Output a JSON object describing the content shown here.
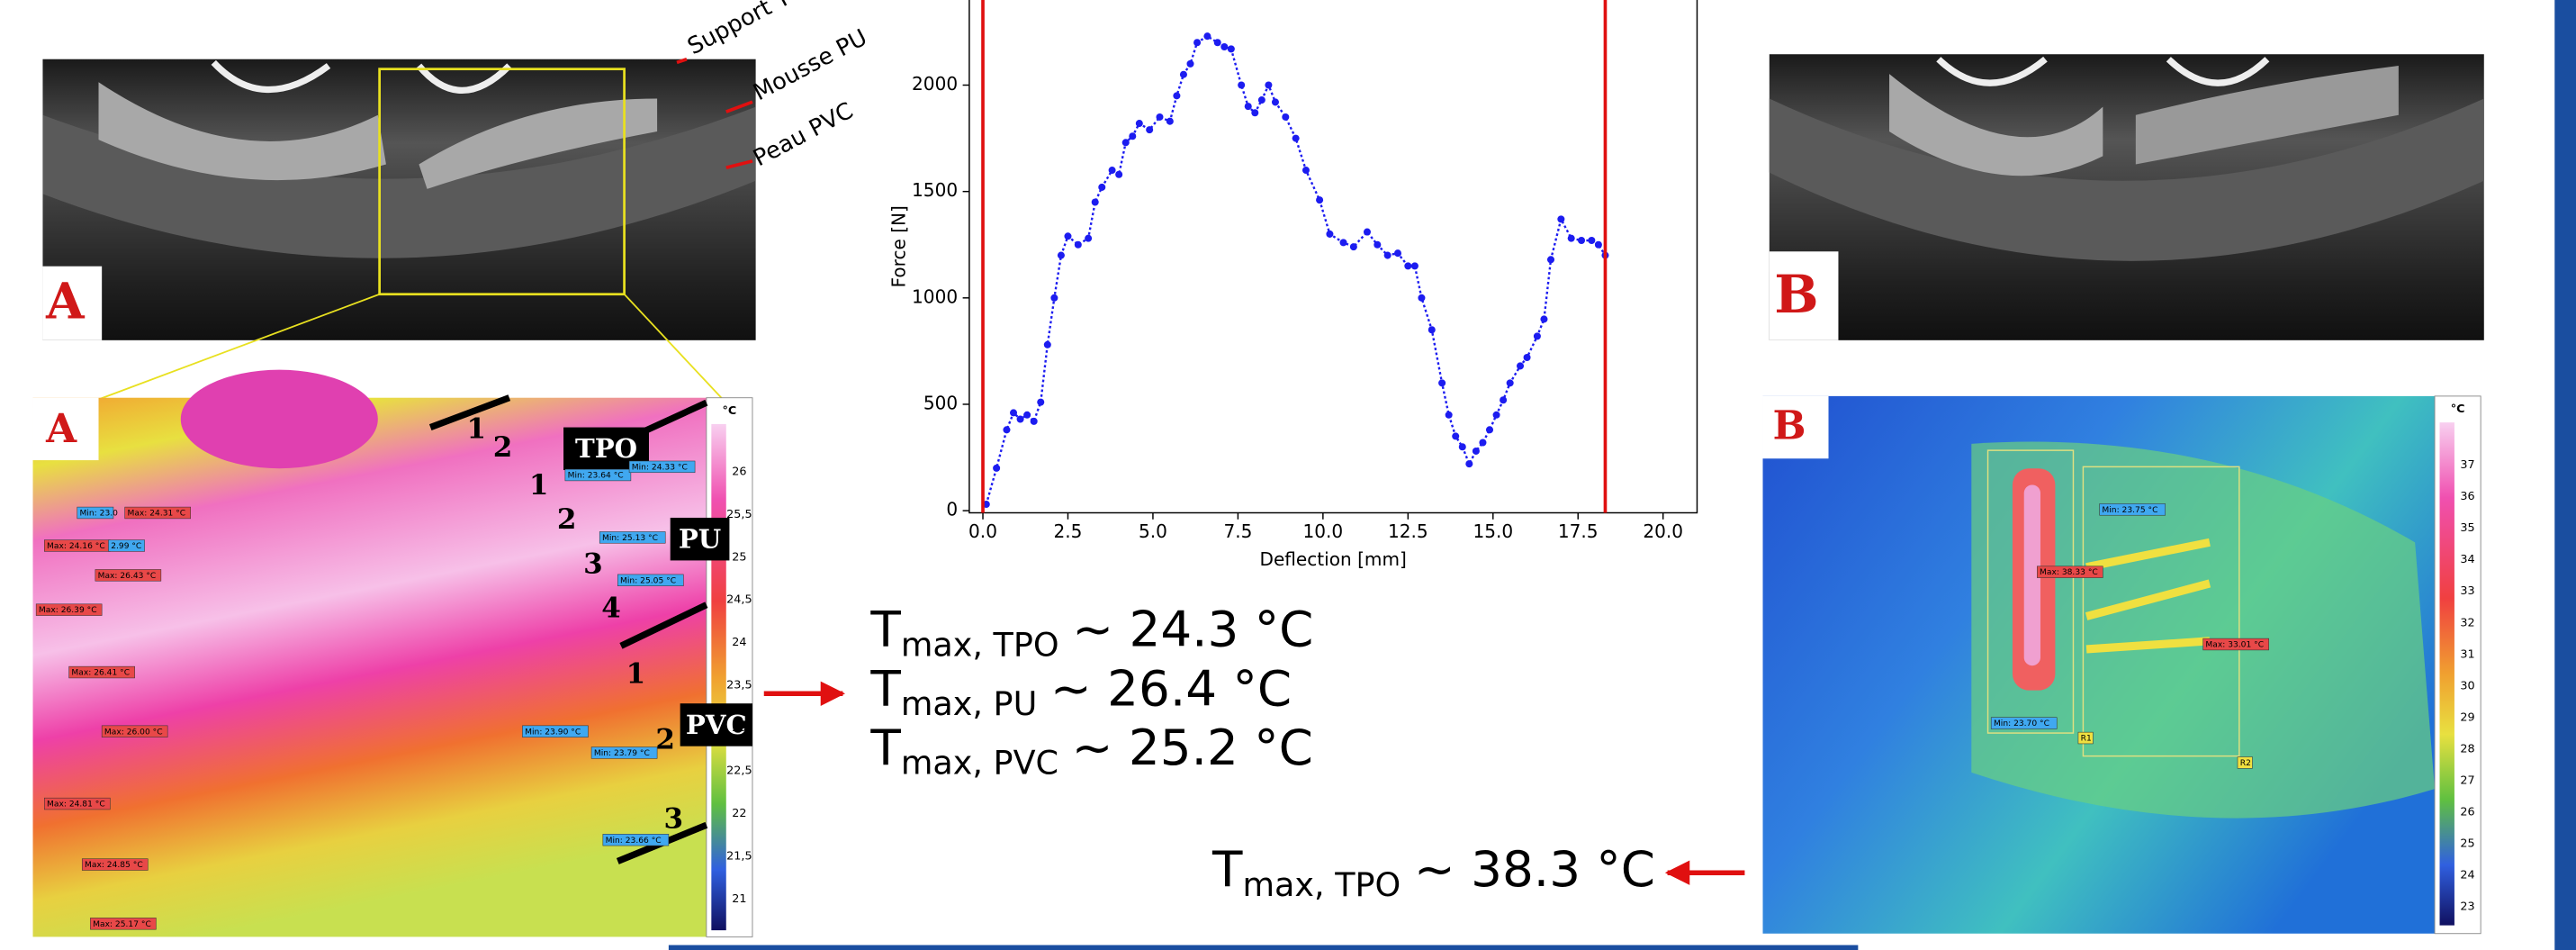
{
  "chart_data": {
    "type": "line",
    "xlabel": "Deflection [mm]",
    "ylabel": "Force [N]",
    "color": "#1c1cf0",
    "x": [
      0.1,
      0.4,
      0.7,
      0.9,
      1.1,
      1.3,
      1.5,
      1.7,
      1.9,
      2.1,
      2.3,
      2.5,
      2.8,
      3.1,
      3.3,
      3.5,
      3.8,
      4.0,
      4.2,
      4.4,
      4.6,
      4.9,
      5.2,
      5.5,
      5.7,
      5.9,
      6.1,
      6.3,
      6.6,
      6.9,
      7.1,
      7.3,
      7.6,
      7.8,
      8.0,
      8.2,
      8.4,
      8.6,
      8.9,
      9.2,
      9.5,
      9.9,
      10.2,
      10.6,
      10.9,
      11.3,
      11.6,
      11.9,
      12.2,
      12.5,
      12.7,
      12.9,
      13.2,
      13.5,
      13.7,
      13.9,
      14.1,
      14.3,
      14.5,
      14.7,
      14.9,
      15.1,
      15.3,
      15.5,
      15.8,
      16.0,
      16.3,
      16.5,
      16.7,
      17.0,
      17.3,
      17.6,
      17.9,
      18.1,
      18.3
    ],
    "y": [
      30,
      200,
      380,
      460,
      430,
      450,
      420,
      510,
      780,
      1000,
      1200,
      1290,
      1250,
      1280,
      1450,
      1520,
      1600,
      1580,
      1730,
      1760,
      1820,
      1790,
      1850,
      1830,
      1950,
      2050,
      2100,
      2200,
      2230,
      2200,
      2180,
      2170,
      2000,
      1900,
      1870,
      1930,
      2000,
      1920,
      1850,
      1750,
      1600,
      1460,
      1300,
      1260,
      1240,
      1310,
      1250,
      1200,
      1210,
      1150,
      1150,
      1000,
      850,
      600,
      450,
      350,
      300,
      220,
      280,
      320,
      380,
      450,
      520,
      600,
      680,
      720,
      820,
      900,
      1180,
      1370,
      1280,
      1270,
      1270,
      1250,
      1200
    ],
    "xlim": [
      -0.4,
      21
    ],
    "ylim": [
      -10,
      2400
    ],
    "xticks": [
      {
        "value": 0,
        "label": "0.0"
      },
      {
        "value": 2.5,
        "label": "2.5"
      },
      {
        "value": 5,
        "label": "5.0"
      },
      {
        "value": 7.5,
        "label": "7.5"
      },
      {
        "value": 10,
        "label": "10.0"
      },
      {
        "value": 12.5,
        "label": "12.5"
      },
      {
        "value": 15,
        "label": "15.0"
      },
      {
        "value": 17.5,
        "label": "17.5"
      },
      {
        "value": 20,
        "label": "20.0"
      }
    ],
    "yticks": [
      0,
      500,
      1000,
      1500,
      2000
    ],
    "vlines": [
      0,
      18.3
    ],
    "vline_color": "#e01010"
  },
  "photo_a": {
    "label": "A",
    "annotations": [
      "Support T",
      "Mousse PU",
      "Peau PVC"
    ]
  },
  "photo_b": {
    "label": "B"
  },
  "thermal_a": {
    "label": "A",
    "layers": [
      "TPO",
      "PU",
      "PVC"
    ],
    "layer_numbers": [
      "1",
      "2",
      "1",
      "2",
      "3",
      "4",
      "1",
      "2",
      "3"
    ],
    "max_labels": [
      "Max: 24.31 °C",
      "Max: 24.16 °C",
      "Max: 26.43 °C",
      "Max: 26.39 °C",
      "Max: 26.41 °C",
      "Max: 26.00 °C",
      "Max: 24.81 °C",
      "Max: 24.85 °C",
      "Max: 25.17 °C"
    ],
    "min_labels": [
      "Min: 23.0",
      "2.99 °C",
      "Min: 23.64 °C",
      "Min: 24.33 °C",
      "Min: 25.13 °C",
      "Min: 25.05 °C",
      "Min: 23.90 °C",
      "Min: 23.79 °C",
      "Min: 23.66 °C"
    ],
    "colorbar_unit": "°C",
    "colorbar_labels": [
      "26",
      "25,5",
      "25",
      "24,5",
      "24",
      "23,5",
      "23",
      "22,5",
      "22",
      "21,5",
      "21"
    ]
  },
  "thermal_b": {
    "label": "B",
    "max_labels": [
      "Max: 38.33 °C",
      "Max: 33.01 °C"
    ],
    "min_labels": [
      "Min: 23.75 °C",
      "Min: 23.70 °C"
    ],
    "regions": [
      "R1",
      "R2"
    ],
    "colorbar_unit": "°C",
    "colorbar_labels": [
      "37",
      "36",
      "35",
      "34",
      "33",
      "32",
      "31",
      "30",
      "29",
      "28",
      "27",
      "26",
      "25",
      "24",
      "23"
    ]
  },
  "results": [
    {
      "symbol": "T",
      "subscript": "max, TPO",
      "value": "~ 24.3 °C"
    },
    {
      "symbol": "T",
      "subscript": "max, PU",
      "value": "~ 26.4 °C"
    },
    {
      "symbol": "T",
      "subscript": "max, PVC",
      "value": "~ 25.2 °C"
    },
    {
      "symbol": "T",
      "subscript": "max, TPO",
      "value": "~ 38.3 °C"
    }
  ]
}
